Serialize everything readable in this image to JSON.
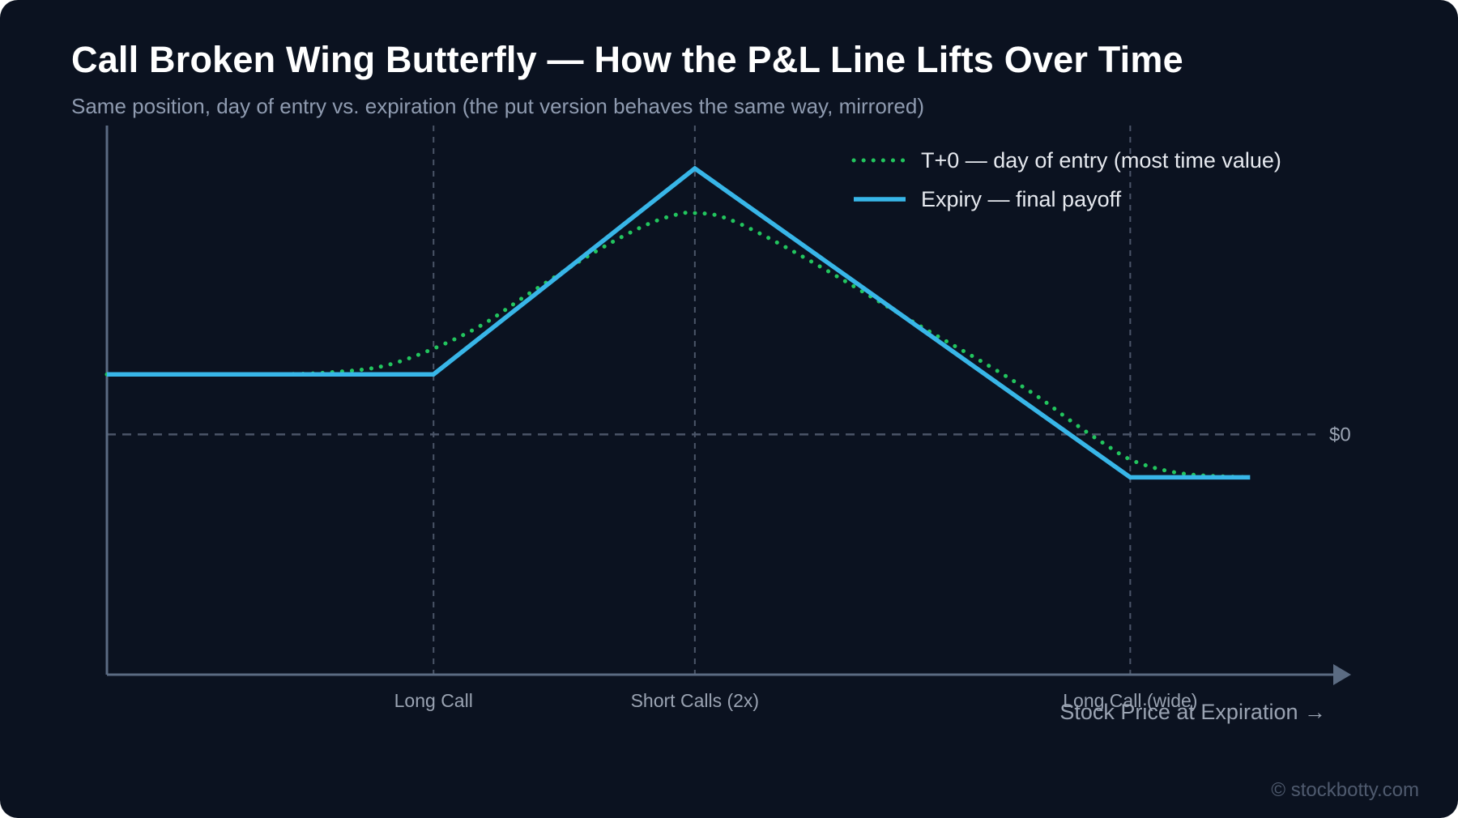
{
  "page": {
    "copyright": "© stockbotty.com"
  },
  "colors": {
    "background": "#0b1220",
    "t0_line": "#22c55e",
    "expiry_line": "#38b6e8",
    "axis": "#5b6b82",
    "grid": "#4b5568"
  },
  "chart_data": {
    "type": "line",
    "title": "Call Broken Wing Butterfly — How the P&L Line Lifts Over Time",
    "subtitle": "Same position, day of entry vs. expiration (the put version behaves the same way, mirrored)",
    "xlabel": "Stock Price at Expiration →",
    "ylabel": "",
    "zero_label": "$0",
    "grid": false,
    "legend_position": "top-right",
    "strikes": [
      {
        "label": "Long Call",
        "x": 100
      },
      {
        "label": "Short Calls (2x)",
        "x": 108
      },
      {
        "label": "Long Call (wide)",
        "x": 121.33
      }
    ],
    "xlim": [
      90,
      127
    ],
    "ylim": [
      -7,
      9
    ],
    "series": [
      {
        "name": "T+0 — day of entry (most time value)",
        "style": "dotted",
        "x": [
          90,
          95,
          97,
          98.5,
          100,
          101.5,
          103,
          105,
          106.5,
          107.5,
          108,
          108.8,
          110,
          112,
          115,
          117,
          118.5,
          119.5,
          120.5,
          121.5,
          123,
          125
        ],
        "y": [
          1.75,
          1.75,
          1.82,
          2.0,
          2.5,
          3.2,
          4.15,
          5.35,
          6.1,
          6.42,
          6.45,
          6.35,
          5.85,
          4.8,
          3.1,
          2.0,
          1.1,
          0.4,
          -0.25,
          -0.8,
          -1.15,
          -1.25
        ]
      },
      {
        "name": "Expiry — final payoff",
        "style": "solid",
        "x": [
          90,
          100,
          108,
          121.33,
          125
        ],
        "y": [
          1.75,
          1.75,
          7.75,
          -1.25,
          -1.25
        ]
      }
    ]
  }
}
